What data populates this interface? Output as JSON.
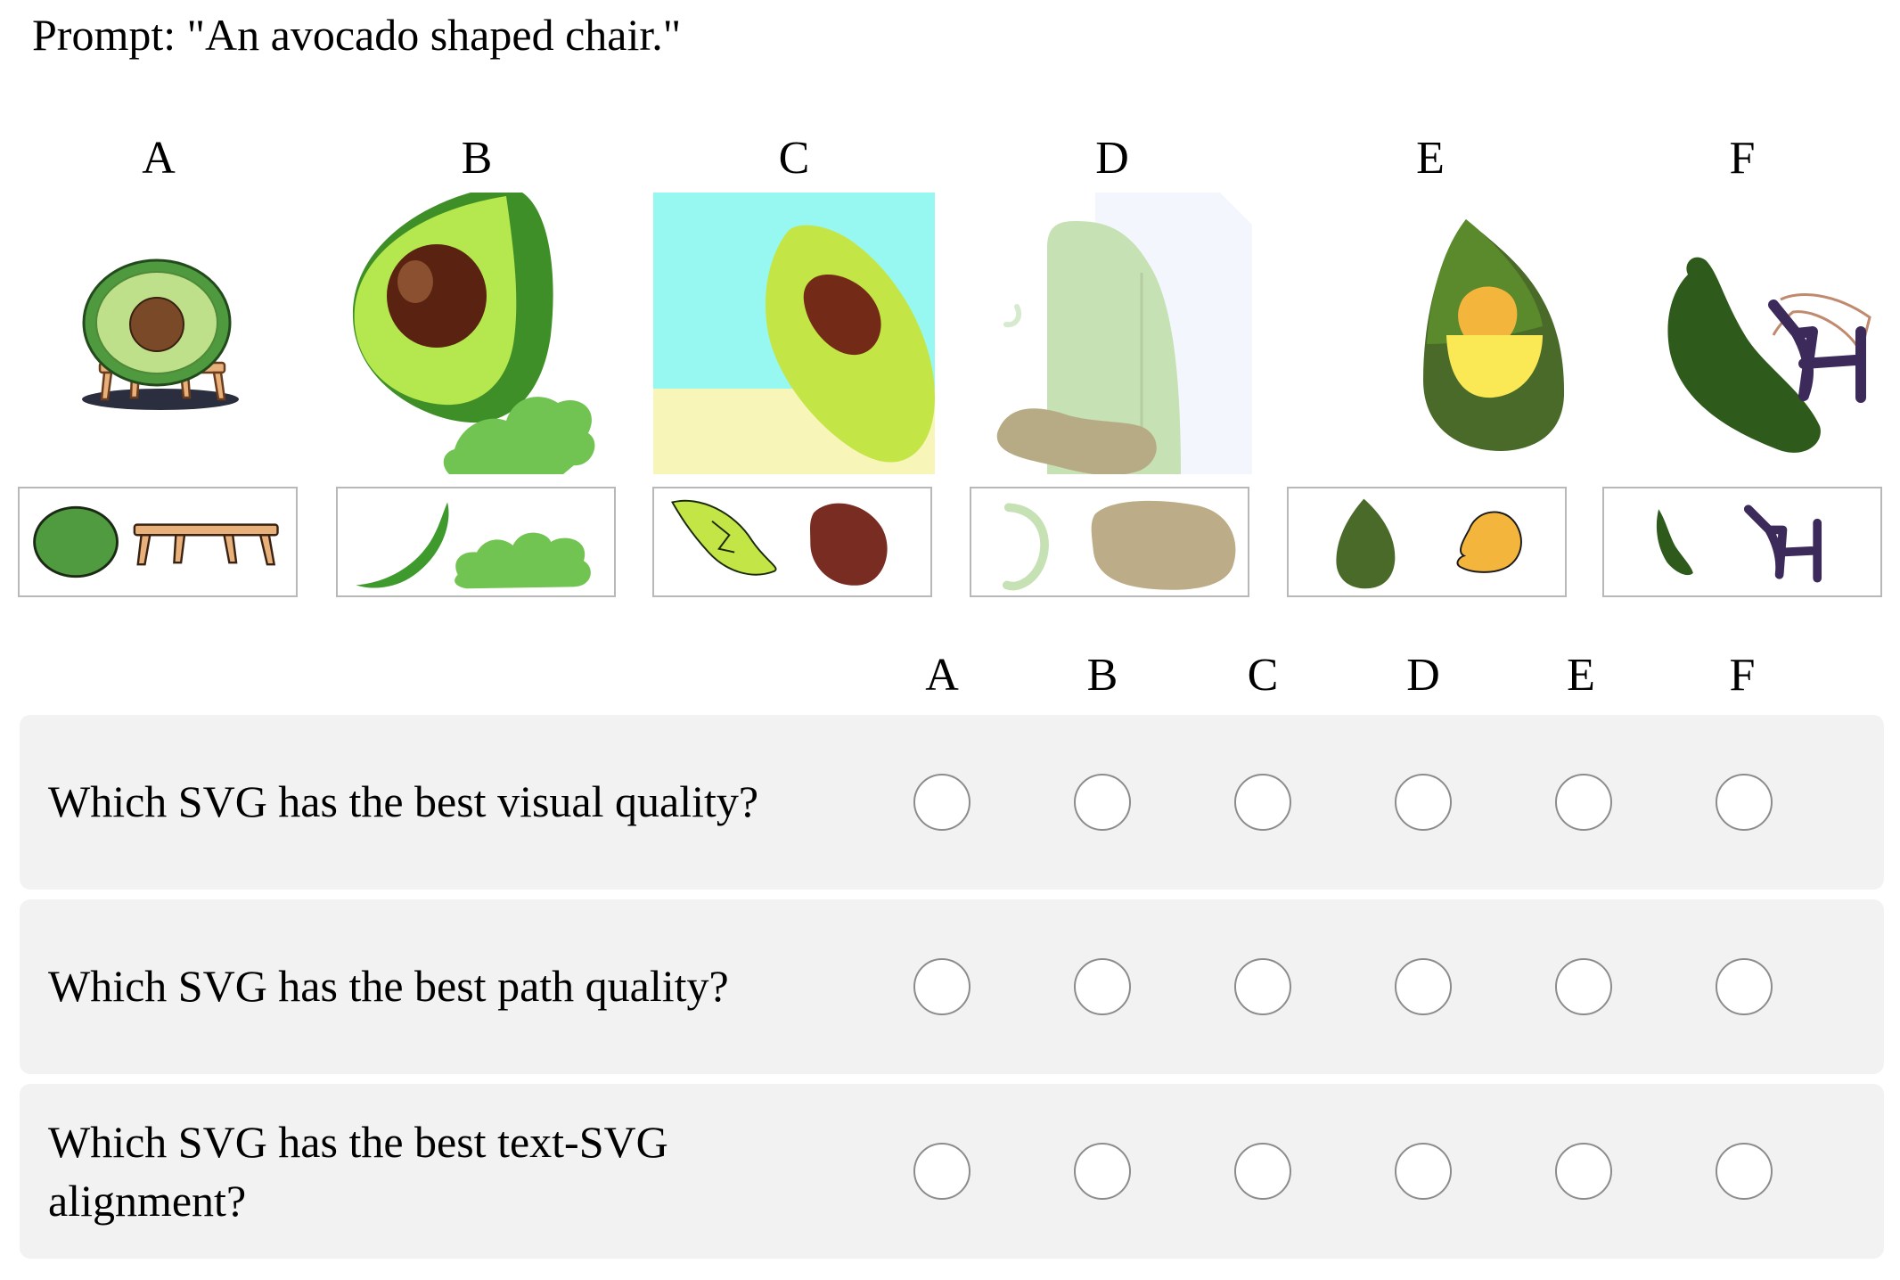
{
  "prompt": "Prompt: \"An avocado shaped chair.\"",
  "options": [
    {
      "label": "A",
      "icon": "avocado-round-chair-icon",
      "parts": [
        "avocado-seat-icon",
        "wooden-bench-icon"
      ]
    },
    {
      "label": "B",
      "icon": "avocado-half-icon",
      "parts": [
        "green-peel-stroke-icon",
        "green-bush-icon"
      ]
    },
    {
      "label": "C",
      "icon": "avocado-on-beach-icon",
      "parts": [
        "lime-leaf-icon",
        "brown-pit-icon"
      ]
    },
    {
      "label": "D",
      "icon": "pale-chair-blob-icon",
      "parts": [
        "pale-arc-icon",
        "tan-blob-icon"
      ]
    },
    {
      "label": "E",
      "icon": "avocado-yellow-pit-icon",
      "parts": [
        "dark-green-drop-icon",
        "orange-egg-icon"
      ]
    },
    {
      "label": "F",
      "icon": "avocado-with-chair-icon",
      "parts": [
        "green-leaf-stroke-icon",
        "purple-chair-stroke-icon"
      ]
    }
  ],
  "table_header": [
    "A",
    "B",
    "C",
    "D",
    "E",
    "F"
  ],
  "questions": [
    {
      "text": "Which SVG has the best visual quality?"
    },
    {
      "text": "Which SVG has the best path quality?"
    },
    {
      "text": "Which SVG has the best text-SVG alignment?"
    }
  ],
  "colors": {
    "row_bg": "#f2f2f2",
    "radio_border": "#8c8c8c",
    "box_border": "#b8b8b8"
  }
}
